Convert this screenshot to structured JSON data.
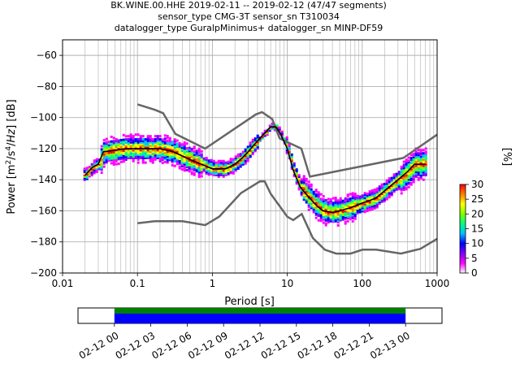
{
  "title_lines": [
    "BK.WINE.00.HHE   2019-02-11 -- 2019-02-12  (47/47 segments)",
    "sensor_type CMG-3T sensor_sn T310034",
    "datalogger_type GuralpMinimus+ datalogger_sn MINP-DF59"
  ],
  "chart_data": [
    {
      "type": "heatmap",
      "title": "BK.WINE.00.HHE   2019-02-11 -- 2019-02-12  (47/47 segments)",
      "xlabel": "Period [s]",
      "ylabel": "Power [m2/s4/Hz] [dB]",
      "xscale": "log",
      "xlim": [
        0.01,
        1000
      ],
      "ylim": [
        -200,
        -50
      ],
      "x_ticks": [
        0.01,
        0.1,
        1,
        10,
        100,
        1000
      ],
      "x_tick_labels": [
        "0.01",
        "0.1",
        "1",
        "10",
        "100",
        "1000"
      ],
      "y_ticks": [
        -200,
        -180,
        -160,
        -140,
        -120,
        -100,
        -80,
        -60
      ],
      "y_tick_labels": [
        "−200",
        "−180",
        "−160",
        "−140",
        "−120",
        "−100",
        "−80",
        "−60"
      ],
      "grid": true,
      "mode_curve": [
        [
          0.02,
          -137
        ],
        [
          0.025,
          -132
        ],
        [
          0.03,
          -130
        ],
        [
          0.035,
          -122
        ],
        [
          0.05,
          -121
        ],
        [
          0.07,
          -120
        ],
        [
          0.1,
          -120
        ],
        [
          0.15,
          -120
        ],
        [
          0.2,
          -120
        ],
        [
          0.3,
          -122
        ],
        [
          0.5,
          -127
        ],
        [
          0.8,
          -131
        ],
        [
          1,
          -133
        ],
        [
          1.5,
          -133
        ],
        [
          2,
          -130
        ],
        [
          2.5,
          -126
        ],
        [
          3,
          -122
        ],
        [
          4,
          -115
        ],
        [
          5,
          -110
        ],
        [
          6,
          -106
        ],
        [
          7,
          -106
        ],
        [
          8,
          -110
        ],
        [
          10,
          -120
        ],
        [
          12,
          -134
        ],
        [
          15,
          -145
        ],
        [
          20,
          -152
        ],
        [
          25,
          -157
        ],
        [
          30,
          -160
        ],
        [
          40,
          -161
        ],
        [
          50,
          -160
        ],
        [
          70,
          -158
        ],
        [
          100,
          -155
        ],
        [
          150,
          -152
        ],
        [
          200,
          -147
        ],
        [
          300,
          -140
        ],
        [
          400,
          -135
        ],
        [
          500,
          -130
        ],
        [
          700,
          -130
        ]
      ],
      "nhnm_curve": [
        [
          0.1,
          -91.5
        ],
        [
          0.17,
          -95
        ],
        [
          0.22,
          -97.2
        ],
        [
          0.32,
          -110.5
        ],
        [
          0.8,
          -120
        ],
        [
          3.8,
          -98
        ],
        [
          4.6,
          -96.5
        ],
        [
          6.3,
          -101
        ],
        [
          7.9,
          -113.5
        ],
        [
          15.4,
          -120
        ],
        [
          20,
          -138
        ],
        [
          354,
          -126
        ],
        [
          1000,
          -111
        ]
      ],
      "nlnm_curve": [
        [
          0.1,
          -168
        ],
        [
          0.17,
          -166.7
        ],
        [
          0.4,
          -166.7
        ],
        [
          0.8,
          -169.2
        ],
        [
          1.24,
          -163.7
        ],
        [
          2.4,
          -148.6
        ],
        [
          4.3,
          -141.1
        ],
        [
          5,
          -141.1
        ],
        [
          6,
          -149
        ],
        [
          10,
          -163.8
        ],
        [
          12,
          -166
        ],
        [
          15.6,
          -162
        ],
        [
          21.9,
          -177.5
        ],
        [
          31.6,
          -185
        ],
        [
          45,
          -187.5
        ],
        [
          70,
          -187.5
        ],
        [
          101,
          -185
        ],
        [
          154,
          -185
        ],
        [
          328,
          -187.5
        ],
        [
          600,
          -184.4
        ],
        [
          1000,
          -178
        ]
      ],
      "psd_cloud_color_stops": [
        "#ffffff",
        "#ff00ff",
        "#7f00ff",
        "#0000ff",
        "#00bfff",
        "#00ff7f",
        "#7fff00",
        "#ffff00",
        "#ff7f00",
        "#ff0000"
      ]
    },
    {
      "type": "bar",
      "title": "",
      "xlabel": "",
      "x_ticks": [
        "02-12 00",
        "02-12 03",
        "02-12 06",
        "02-12 09",
        "02-12 12",
        "02-12 15",
        "02-12 18",
        "02-12 21",
        "02-13 00"
      ],
      "x_range_hours": [
        -3,
        27
      ],
      "segments": [
        {
          "name": "",
          "start_hour": 0,
          "end_hour": 24,
          "color": "#008000"
        },
        {
          "name": "",
          "start_hour": 0,
          "end_hour": 24,
          "color": "#0000ff"
        }
      ]
    }
  ],
  "colorbar": {
    "label": "[%]",
    "range": [
      0,
      30
    ],
    "ticks": [
      0,
      5,
      10,
      15,
      20,
      25,
      30
    ],
    "tick_labels": [
      "0",
      "5",
      "10",
      "15",
      "20",
      "25",
      "30"
    ]
  },
  "colors": {
    "mode_line": "#000000",
    "noise_models": "#666666",
    "grid": "#b0b0b0"
  }
}
